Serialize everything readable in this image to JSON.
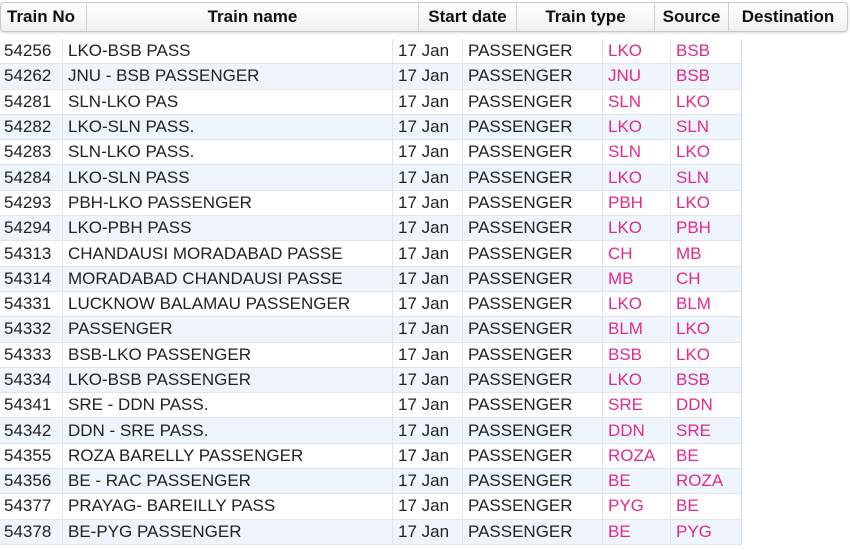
{
  "table": {
    "headers": {
      "train_no": "Train No",
      "train_name": "Train name",
      "start_date": "Start date",
      "train_type": "Train type",
      "source": "Source",
      "destination": "Destination"
    },
    "accent_color": "#e3298c",
    "rows": [
      {
        "no": "54256",
        "name": "LKO-BSB PASS",
        "date": "17 Jan",
        "type": "PASSENGER",
        "src": "LKO",
        "dst": "BSB"
      },
      {
        "no": "54262",
        "name": "JNU - BSB PASSENGER",
        "date": "17 Jan",
        "type": "PASSENGER",
        "src": "JNU",
        "dst": "BSB"
      },
      {
        "no": "54281",
        "name": "SLN-LKO PAS",
        "date": "17 Jan",
        "type": "PASSENGER",
        "src": "SLN",
        "dst": "LKO"
      },
      {
        "no": "54282",
        "name": "LKO-SLN PASS.",
        "date": "17 Jan",
        "type": "PASSENGER",
        "src": "LKO",
        "dst": "SLN"
      },
      {
        "no": "54283",
        "name": "SLN-LKO PASS.",
        "date": "17 Jan",
        "type": "PASSENGER",
        "src": "SLN",
        "dst": "LKO"
      },
      {
        "no": "54284",
        "name": "LKO-SLN PASS",
        "date": "17 Jan",
        "type": "PASSENGER",
        "src": "LKO",
        "dst": "SLN"
      },
      {
        "no": "54293",
        "name": "PBH-LKO PASSENGER",
        "date": "17 Jan",
        "type": "PASSENGER",
        "src": "PBH",
        "dst": "LKO"
      },
      {
        "no": "54294",
        "name": "LKO-PBH PASS",
        "date": "17 Jan",
        "type": "PASSENGER",
        "src": "LKO",
        "dst": "PBH"
      },
      {
        "no": "54313",
        "name": "CHANDAUSI MORADABAD PASSE",
        "date": "17 Jan",
        "type": "PASSENGER",
        "src": "CH",
        "dst": "MB"
      },
      {
        "no": "54314",
        "name": "MORADABAD CHANDAUSI PASSE",
        "date": "17 Jan",
        "type": "PASSENGER",
        "src": "MB",
        "dst": "CH"
      },
      {
        "no": "54331",
        "name": "LUCKNOW BALAMAU PASSENGER",
        "date": "17 Jan",
        "type": "PASSENGER",
        "src": "LKO",
        "dst": "BLM"
      },
      {
        "no": "54332",
        "name": "PASSENGER",
        "date": "17 Jan",
        "type": "PASSENGER",
        "src": "BLM",
        "dst": "LKO"
      },
      {
        "no": "54333",
        "name": "BSB-LKO PASSENGER",
        "date": "17 Jan",
        "type": "PASSENGER",
        "src": "BSB",
        "dst": "LKO"
      },
      {
        "no": "54334",
        "name": "LKO-BSB PASSENGER",
        "date": "17 Jan",
        "type": "PASSENGER",
        "src": "LKO",
        "dst": "BSB"
      },
      {
        "no": "54341",
        "name": "SRE - DDN PASS.",
        "date": "17 Jan",
        "type": "PASSENGER",
        "src": "SRE",
        "dst": "DDN"
      },
      {
        "no": "54342",
        "name": "DDN - SRE PASS.",
        "date": "17 Jan",
        "type": "PASSENGER",
        "src": "DDN",
        "dst": "SRE"
      },
      {
        "no": "54355",
        "name": "ROZA BARELLY PASSENGER",
        "date": "17 Jan",
        "type": "PASSENGER",
        "src": "ROZA",
        "dst": "BE"
      },
      {
        "no": "54356",
        "name": "BE - RAC PASSENGER",
        "date": "17 Jan",
        "type": "PASSENGER",
        "src": "BE",
        "dst": "ROZA"
      },
      {
        "no": "54377",
        "name": "PRAYAG- BAREILLY PASS",
        "date": "17 Jan",
        "type": "PASSENGER",
        "src": "PYG",
        "dst": "BE"
      },
      {
        "no": "54378",
        "name": "BE-PYG PASSENGER",
        "date": "17 Jan",
        "type": "PASSENGER",
        "src": "BE",
        "dst": "PYG"
      }
    ]
  }
}
